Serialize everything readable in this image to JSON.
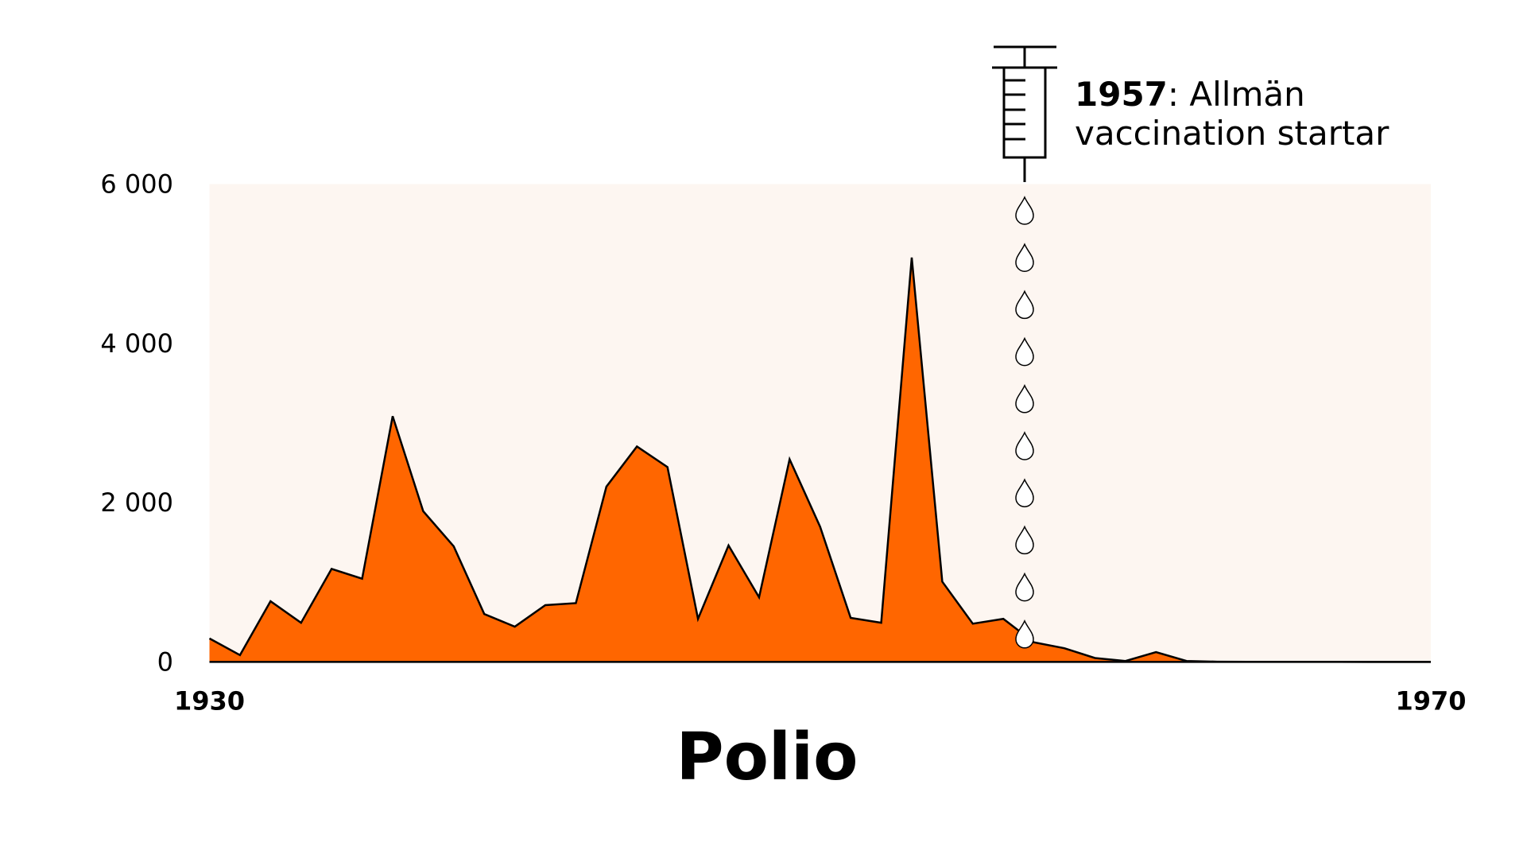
{
  "chart_data": {
    "type": "area",
    "title": "Polio",
    "x": [
      1930,
      1931,
      1932,
      1933,
      1934,
      1935,
      1936,
      1937,
      1938,
      1939,
      1940,
      1941,
      1942,
      1943,
      1944,
      1945,
      1946,
      1947,
      1948,
      1949,
      1950,
      1951,
      1952,
      1953,
      1954,
      1955,
      1956,
      1957,
      1958,
      1959,
      1960,
      1961,
      1962,
      1963,
      1964,
      1965,
      1966,
      1967,
      1968,
      1969,
      1970
    ],
    "series": [
      {
        "name": "Polio",
        "color": "#ff6600",
        "values": [
          295,
          86,
          762,
          492,
          1168,
          1045,
          3086,
          1893,
          1451,
          602,
          443,
          713,
          738,
          2201,
          2705,
          2447,
          541,
          1463,
          811,
          2545,
          1697,
          553,
          492,
          5078,
          1008,
          480,
          541,
          246,
          172,
          49,
          12,
          123,
          12,
          3,
          2,
          1,
          2,
          1,
          0,
          0,
          0
        ]
      }
    ],
    "xlim": [
      1930,
      1970
    ],
    "xticks": [
      1930,
      1970
    ],
    "ylim": [
      0,
      6000
    ],
    "yticks": [
      0,
      {
        "value": 2000,
        "label": "2 000"
      },
      {
        "value": 4000,
        "label": "4 000"
      },
      {
        "value": 6000,
        "label": "6 000"
      }
    ],
    "background": "#fdf6f1",
    "annotation": {
      "year": "1957",
      "lines": [
        ": Allmän",
        "vaccination startar"
      ]
    }
  }
}
